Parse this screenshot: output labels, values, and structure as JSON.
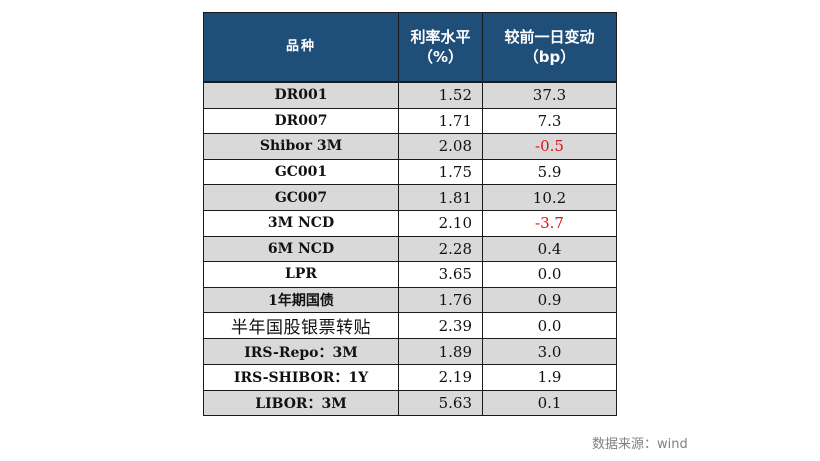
{
  "table": {
    "headers": {
      "name": "品种",
      "rate_line1": "利率水平",
      "rate_line2": "（%）",
      "change_line1": "较前一日变动",
      "change_line2": "（bp）"
    },
    "rows": [
      {
        "name": "DR001",
        "rate": "1.52",
        "change": "37.3",
        "negative": false
      },
      {
        "name": "DR007",
        "rate": "1.71",
        "change": "7.3",
        "negative": false
      },
      {
        "name": "Shibor 3M",
        "rate": "2.08",
        "change": "-0.5",
        "negative": true
      },
      {
        "name": "GC001",
        "rate": "1.75",
        "change": "5.9",
        "negative": false
      },
      {
        "name": "GC007",
        "rate": "1.81",
        "change": "10.2",
        "negative": false
      },
      {
        "name": "3M NCD",
        "rate": "2.10",
        "change": "-3.7",
        "negative": true
      },
      {
        "name": "6M NCD",
        "rate": "2.28",
        "change": "0.4",
        "negative": false
      },
      {
        "name": "LPR",
        "rate": "3.65",
        "change": "0.0",
        "negative": false
      },
      {
        "name": "1年期国债",
        "rate": "1.76",
        "change": "0.9",
        "negative": false
      },
      {
        "name": "半年国股银票转贴",
        "rate": "2.39",
        "change": "0.0",
        "negative": false
      },
      {
        "name": "IRS-Repo：3M",
        "rate": "1.89",
        "change": "3.0",
        "negative": false
      },
      {
        "name": "IRS-SHIBOR：1Y",
        "rate": "2.19",
        "change": "1.9",
        "negative": false
      },
      {
        "name": "LIBOR：3M",
        "rate": "5.63",
        "change": "0.1",
        "negative": false
      }
    ]
  },
  "colors": {
    "header_bg": "#1f4e79",
    "stripe": "#d9d9d9",
    "negative": "#e01010"
  },
  "source": "数据来源：wind"
}
